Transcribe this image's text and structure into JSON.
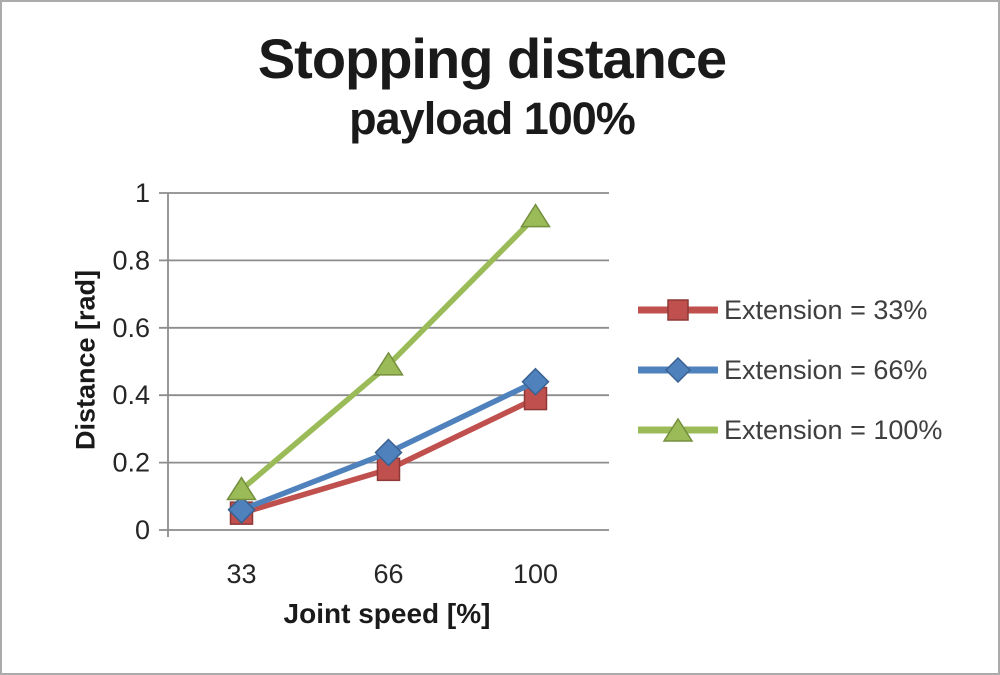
{
  "chart_data": {
    "type": "line",
    "title": "Stopping distance",
    "subtitle": "payload 100%",
    "xlabel": "Joint speed [%]",
    "ylabel": "Distance [rad]",
    "categories": [
      "33",
      "66",
      "100"
    ],
    "ylim": [
      0,
      1
    ],
    "yticks": [
      0,
      0.2,
      0.4,
      0.6,
      0.8,
      1
    ],
    "ytick_labels": [
      "0",
      "0.2",
      "0.4",
      "0.6",
      "0.8",
      "1"
    ],
    "grid": true,
    "legend_position": "right",
    "series": [
      {
        "name": "Extension = 33%",
        "marker": "square",
        "color": "#c0504d",
        "edge": "#8e3937",
        "values": [
          0.05,
          0.18,
          0.39
        ]
      },
      {
        "name": "Extension = 66%",
        "marker": "diamond",
        "color": "#4f81bd",
        "edge": "#3a6191",
        "values": [
          0.06,
          0.23,
          0.44
        ]
      },
      {
        "name": "Extension = 100%",
        "marker": "triangle",
        "color": "#9bbb59",
        "edge": "#748f3d",
        "values": [
          0.12,
          0.49,
          0.93
        ]
      }
    ]
  },
  "colors": {
    "background": "#ffffff",
    "frame_border": "#ababab",
    "gridline": "#8c8c8c",
    "axis_line": "#8c8c8c",
    "axis_text": "#262626",
    "title_text": "#1a1a1a",
    "legend_text": "#3f3f3f"
  }
}
